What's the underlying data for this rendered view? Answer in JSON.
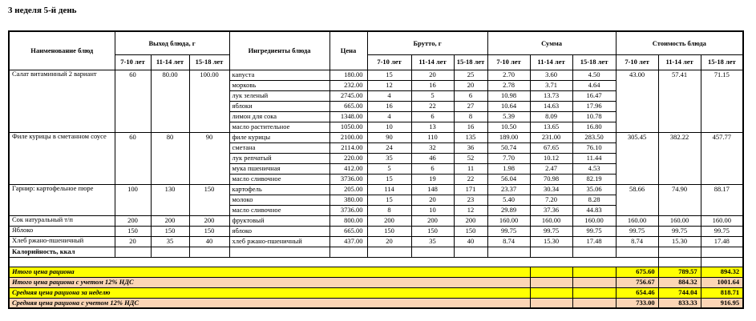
{
  "title": "3 неделя 5-й день",
  "table": {
    "headers": {
      "dish": "Наименование блюд",
      "output": "Выход блюда, г",
      "ingredients": "Ингредиенты блюда",
      "price": "Цена",
      "gross": "Брутто, г",
      "sum": "Сумма",
      "cost": "Стоимость блюда",
      "age_groups": [
        "7-10 лет",
        "11-14 лет",
        "15-18 лет"
      ]
    },
    "dishes": [
      {
        "name": "Салат витаминный 2 вариант",
        "output": [
          "60",
          "80.00",
          "100.00"
        ],
        "cost": [
          "43.00",
          "57.41",
          "71.15"
        ],
        "ingredients": [
          {
            "name": "капуста",
            "price": "180.00",
            "gross": [
              "15",
              "20",
              "25"
            ],
            "sum": [
              "2.70",
              "3.60",
              "4.50"
            ]
          },
          {
            "name": "морковь",
            "price": "232.00",
            "gross": [
              "12",
              "16",
              "20"
            ],
            "sum": [
              "2.78",
              "3.71",
              "4.64"
            ]
          },
          {
            "name": "лук зеленый",
            "price": "2745.00",
            "gross": [
              "4",
              "5",
              "6"
            ],
            "sum": [
              "10.98",
              "13.73",
              "16.47"
            ]
          },
          {
            "name": "яблоки",
            "price": "665.00",
            "gross": [
              "16",
              "22",
              "27"
            ],
            "sum": [
              "10.64",
              "14.63",
              "17.96"
            ]
          },
          {
            "name": "лимон для сока",
            "price": "1348.00",
            "gross": [
              "4",
              "6",
              "8"
            ],
            "sum": [
              "5.39",
              "8.09",
              "10.78"
            ]
          },
          {
            "name": "масло растительное",
            "price": "1050.00",
            "gross": [
              "10",
              "13",
              "16"
            ],
            "sum": [
              "10.50",
              "13.65",
              "16.80"
            ]
          }
        ]
      },
      {
        "name": "Филе курицы в сметанном соусе",
        "output": [
          "60",
          "80",
          "90"
        ],
        "cost": [
          "305.45",
          "382.22",
          "457.77"
        ],
        "ingredients": [
          {
            "name": "филе курицы",
            "price": "2100.00",
            "gross": [
              "90",
              "110",
              "135"
            ],
            "sum": [
              "189.00",
              "231.00",
              "283.50"
            ]
          },
          {
            "name": "сметана",
            "price": "2114.00",
            "gross": [
              "24",
              "32",
              "36"
            ],
            "sum": [
              "50.74",
              "67.65",
              "76.10"
            ]
          },
          {
            "name": "лук репчатый",
            "price": "220.00",
            "gross": [
              "35",
              "46",
              "52"
            ],
            "sum": [
              "7.70",
              "10.12",
              "11.44"
            ]
          },
          {
            "name": "мука пшеничная",
            "price": "412.00",
            "gross": [
              "5",
              "6",
              "11"
            ],
            "sum": [
              "1.98",
              "2.47",
              "4.53"
            ]
          },
          {
            "name": "масло сливочное",
            "price": "3736.00",
            "gross": [
              "15",
              "19",
              "22"
            ],
            "sum": [
              "56.04",
              "70.98",
              "82.19"
            ]
          }
        ]
      },
      {
        "name": "Гарнир: картофельное пюре",
        "output": [
          "100",
          "130",
          "150"
        ],
        "cost": [
          "58.66",
          "74.90",
          "88.17"
        ],
        "ingredients": [
          {
            "name": "картофель",
            "price": "205.00",
            "gross": [
              "114",
              "148",
              "171"
            ],
            "sum": [
              "23.37",
              "30.34",
              "35.06"
            ]
          },
          {
            "name": "молоко",
            "price": "380.00",
            "gross": [
              "15",
              "20",
              "23"
            ],
            "sum": [
              "5.40",
              "7.20",
              "8.28"
            ]
          },
          {
            "name": "масло сливочное",
            "price": "3736.00",
            "gross": [
              "8",
              "10",
              "12"
            ],
            "sum": [
              "29.89",
              "37.36",
              "44.83"
            ]
          }
        ]
      },
      {
        "name": "Сок натуральный т/п",
        "output": [
          "200",
          "200",
          "200"
        ],
        "cost": [
          "160.00",
          "160.00",
          "160.00"
        ],
        "ingredients": [
          {
            "name": "фруктовый",
            "price": "800.00",
            "gross": [
              "200",
              "200",
              "200"
            ],
            "sum": [
              "160.00",
              "160.00",
              "160.00"
            ]
          }
        ]
      },
      {
        "name": "Яблоко",
        "output": [
          "150",
          "150",
          "150"
        ],
        "cost": [
          "99.75",
          "99.75",
          "99.75"
        ],
        "ingredients": [
          {
            "name": "яблоко",
            "price": "665.00",
            "gross": [
              "150",
              "150",
              "150"
            ],
            "sum": [
              "99.75",
              "99.75",
              "99.75"
            ]
          }
        ]
      },
      {
        "name": "Хлеб ржано-пшеничный",
        "output": [
          "20",
          "35",
          "40"
        ],
        "cost": [
          "8.74",
          "15.30",
          "17.48"
        ],
        "ingredients": [
          {
            "name": "хлеб ржано-пшеничный",
            "price": "437.00",
            "gross": [
              "20",
              "35",
              "40"
            ],
            "sum": [
              "8.74",
              "15.30",
              "17.48"
            ]
          }
        ]
      }
    ],
    "calories_label": "Калорийность, ккал",
    "summary": [
      {
        "label": "Итого цена рациона",
        "values": [
          "675.60",
          "789.57",
          "894.32"
        ],
        "bg": "yellow"
      },
      {
        "label": "Итого цена рациона с учетом 12% НДС",
        "values": [
          "756.67",
          "884.32",
          "1001.64"
        ],
        "bg": "peach"
      },
      {
        "label": "Средняя цена рациона за неделю",
        "values": [
          "654.46",
          "744.04",
          "818.71"
        ],
        "bg": "yellow"
      },
      {
        "label": "Средняя цена рациона с учетом 12% НДС",
        "values": [
          "733.00",
          "833.33",
          "916.95"
        ],
        "bg": "peach"
      }
    ],
    "colors": {
      "yellow": "#FFFF00",
      "peach": "#FBD5B5"
    }
  }
}
